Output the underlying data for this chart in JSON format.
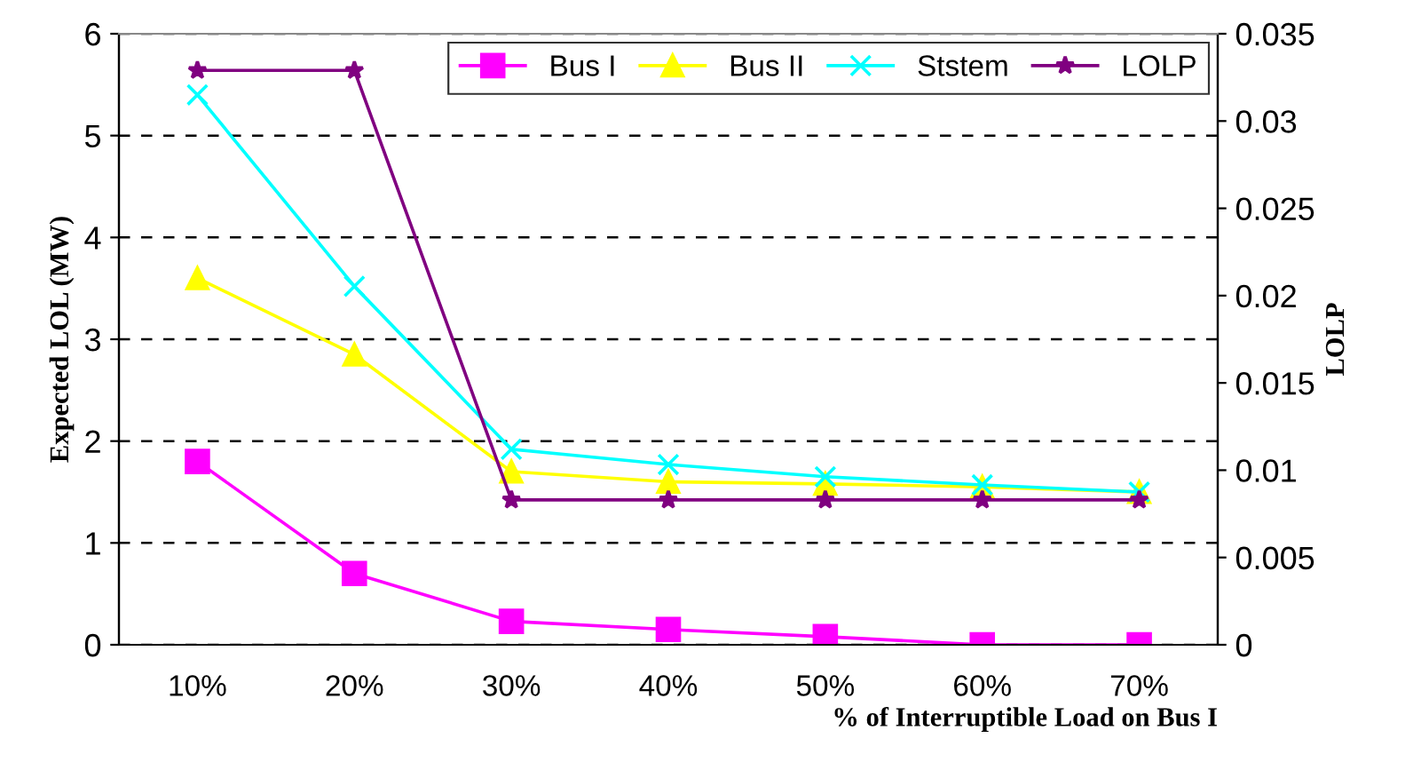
{
  "chart_data": {
    "type": "line",
    "categories": [
      "10%",
      "20%",
      "30%",
      "40%",
      "50%",
      "60%",
      "70%"
    ],
    "xlabel": "% of Interruptible Load on Bus I",
    "ylabel": "Expected LOL (MW)",
    "y2label": "LOLP",
    "ylim": [
      0,
      6
    ],
    "yticks": [
      0,
      1,
      2,
      3,
      4,
      5,
      6
    ],
    "y2lim": [
      0,
      0.035
    ],
    "y2ticks": [
      0,
      0.005,
      0.01,
      0.015,
      0.02,
      0.025,
      0.03,
      0.035
    ],
    "grid": "y",
    "legend": "top right",
    "series": [
      {
        "name": "Bus I",
        "color": "#ff00ff",
        "marker": "square",
        "values": [
          1.8,
          0.7,
          0.23,
          0.15,
          0.08,
          0,
          0
        ]
      },
      {
        "name": "Bus II",
        "color": "#ffff00",
        "marker": "triangle",
        "values": [
          3.6,
          2.85,
          1.7,
          1.6,
          1.58,
          1.55,
          1.5
        ]
      },
      {
        "name": "Ststem",
        "color": "#00ffff",
        "marker": "cross",
        "values": [
          5.4,
          3.52,
          1.92,
          1.77,
          1.65,
          1.57,
          1.5
        ]
      },
      {
        "name": "LOLP",
        "color": "#800080",
        "marker": "star",
        "axis": "y2",
        "values": [
          0.0329,
          0.0329,
          0.0083,
          0.0083,
          0.0083,
          0.0083,
          0.0083
        ]
      }
    ]
  }
}
